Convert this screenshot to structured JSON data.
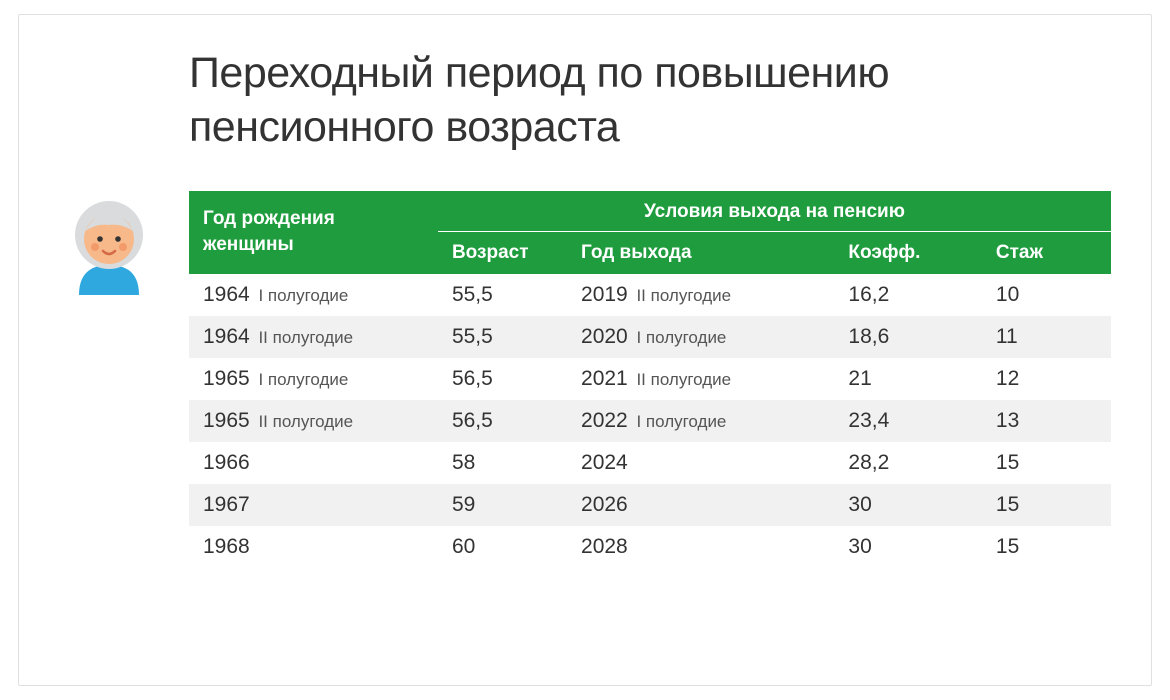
{
  "title": "Переходный период по повышению пенсионного возраста",
  "colors": {
    "header_bg": "#1f9d3e",
    "header_fg": "#ffffff",
    "row_even_bg": "#f1f1f1",
    "text": "#333333",
    "sub_text": "#555555",
    "card_border": "#e0e0e0",
    "avatar_hair": "#d9dbdd",
    "avatar_skin": "#f7b98a",
    "avatar_cheek": "#f39a6a",
    "avatar_body": "#2fa8e0",
    "avatar_lips": "#d46a45"
  },
  "table": {
    "header_birth": "Год рождения женщины",
    "header_conditions": "Условия выхода на пенсию",
    "header_age": "Возраст",
    "header_exit": "Год выхода",
    "header_coef": "Коэфф.",
    "header_stage": "Стаж",
    "col_widths_pct": [
      27,
      14,
      29,
      16,
      14
    ],
    "rows": [
      {
        "birth_year": "1964",
        "birth_sub": "I полугодие",
        "age": "55,5",
        "exit_year": "2019",
        "exit_sub": "II полугодие",
        "coef": "16,2",
        "stage": "10"
      },
      {
        "birth_year": "1964",
        "birth_sub": "II полугодие",
        "age": "55,5",
        "exit_year": "2020",
        "exit_sub": "I полугодие",
        "coef": "18,6",
        "stage": "11"
      },
      {
        "birth_year": "1965",
        "birth_sub": "I полугодие",
        "age": "56,5",
        "exit_year": "2021",
        "exit_sub": "II полугодие",
        "coef": "21",
        "stage": "12"
      },
      {
        "birth_year": "1965",
        "birth_sub": "II полугодие",
        "age": "56,5",
        "exit_year": "2022",
        "exit_sub": "I полугодие",
        "coef": "23,4",
        "stage": "13"
      },
      {
        "birth_year": "1966",
        "birth_sub": "",
        "age": "58",
        "exit_year": "2024",
        "exit_sub": "",
        "coef": "28,2",
        "stage": "15"
      },
      {
        "birth_year": "1967",
        "birth_sub": "",
        "age": "59",
        "exit_year": "2026",
        "exit_sub": "",
        "coef": "30",
        "stage": "15"
      },
      {
        "birth_year": "1968",
        "birth_sub": "",
        "age": "60",
        "exit_year": "2028",
        "exit_sub": "",
        "coef": "30",
        "stage": "15"
      }
    ]
  }
}
